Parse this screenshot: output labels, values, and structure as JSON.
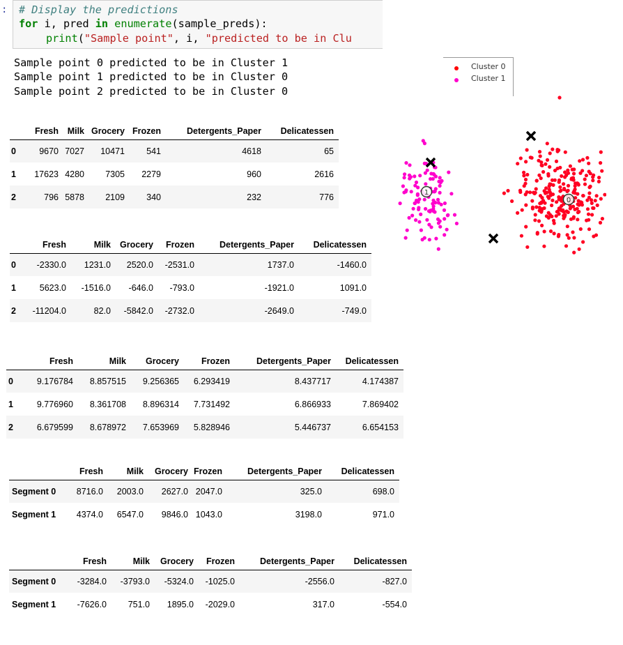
{
  "code_cell": {
    "prompt": ":",
    "comment": "# Display the predictions",
    "line2": {
      "kw_for": "for",
      "vars": " i, pred ",
      "kw_in": "in",
      "func": " enumerate",
      "rest": "(sample_preds):"
    },
    "line3": {
      "func": "print",
      "open": "(",
      "str1": "\"Sample point\"",
      "mid": ", i, ",
      "str2": "\"predicted to be in Clu"
    }
  },
  "output": [
    "Sample point 0 predicted to be in Cluster 1",
    "Sample point 1 predicted to be in Cluster 0",
    "Sample point 2 predicted to be in Cluster 0"
  ],
  "tables": [
    {
      "columns": [
        "",
        "Fresh",
        "Milk",
        "Grocery",
        "Frozen",
        "Detergents_Paper",
        "Delicatessen"
      ],
      "rows": [
        [
          "0",
          "9670",
          "7027",
          "10471",
          "541",
          "4618",
          "65"
        ],
        [
          "1",
          "17623",
          "4280",
          "7305",
          "2279",
          "960",
          "2616"
        ],
        [
          "2",
          "796",
          "5878",
          "2109",
          "340",
          "232",
          "776"
        ]
      ]
    },
    {
      "columns": [
        "",
        "Fresh",
        "Milk",
        "Grocery",
        "Frozen",
        "Detergents_Paper",
        "Delicatessen"
      ],
      "rows": [
        [
          "0",
          "-2330.0",
          "1231.0",
          "2520.0",
          "-2531.0",
          "1737.0",
          "-1460.0"
        ],
        [
          "1",
          "5623.0",
          "-1516.0",
          "-646.0",
          "-793.0",
          "-1921.0",
          "1091.0"
        ],
        [
          "2",
          "-11204.0",
          "82.0",
          "-5842.0",
          "-2732.0",
          "-2649.0",
          "-749.0"
        ]
      ]
    },
    {
      "columns": [
        "",
        "Fresh",
        "Milk",
        "Grocery",
        "Frozen",
        "Detergents_Paper",
        "Delicatessen"
      ],
      "rows": [
        [
          "0",
          "9.176784",
          "8.857515",
          "9.256365",
          "6.293419",
          "8.437717",
          "4.174387"
        ],
        [
          "1",
          "9.776960",
          "8.361708",
          "8.896314",
          "7.731492",
          "6.866933",
          "7.869402"
        ],
        [
          "2",
          "6.679599",
          "8.678972",
          "7.653969",
          "5.828946",
          "5.446737",
          "6.654153"
        ]
      ]
    },
    {
      "columns": [
        "",
        "Fresh",
        "Milk",
        "Grocery",
        "Frozen",
        "Detergents_Paper",
        "Delicatessen"
      ],
      "rows": [
        [
          "Segment 0",
          "8716.0",
          "2003.0",
          "2627.0",
          "2047.0",
          "325.0",
          "698.0"
        ],
        [
          "Segment 1",
          "4374.0",
          "6547.0",
          "9846.0",
          "1043.0",
          "3198.0",
          "971.0"
        ]
      ]
    },
    {
      "columns": [
        "",
        "Fresh",
        "Milk",
        "Grocery",
        "Frozen",
        "Detergents_Paper",
        "Delicatessen"
      ],
      "rows": [
        [
          "Segment 0",
          "-3284.0",
          "-3793.0",
          "-5324.0",
          "-1025.0",
          "-2556.0",
          "-827.0"
        ],
        [
          "Segment 1",
          "-7626.0",
          "751.0",
          "1895.0",
          "-2029.0",
          "317.0",
          "-554.0"
        ]
      ]
    }
  ],
  "legend": {
    "items": [
      {
        "label": "Cluster 0",
        "color": "#ff0000"
      },
      {
        "label": "Cluster 1",
        "color": "#ff00cc"
      }
    ]
  },
  "chart_data": {
    "type": "scatter",
    "series": [
      {
        "name": "Cluster 0",
        "color": "#ff0022"
      },
      {
        "name": "Cluster 1",
        "color": "#ff00cc"
      }
    ],
    "centers": [
      {
        "label": "0"
      },
      {
        "label": "1"
      }
    ],
    "sample_markers": 3
  }
}
